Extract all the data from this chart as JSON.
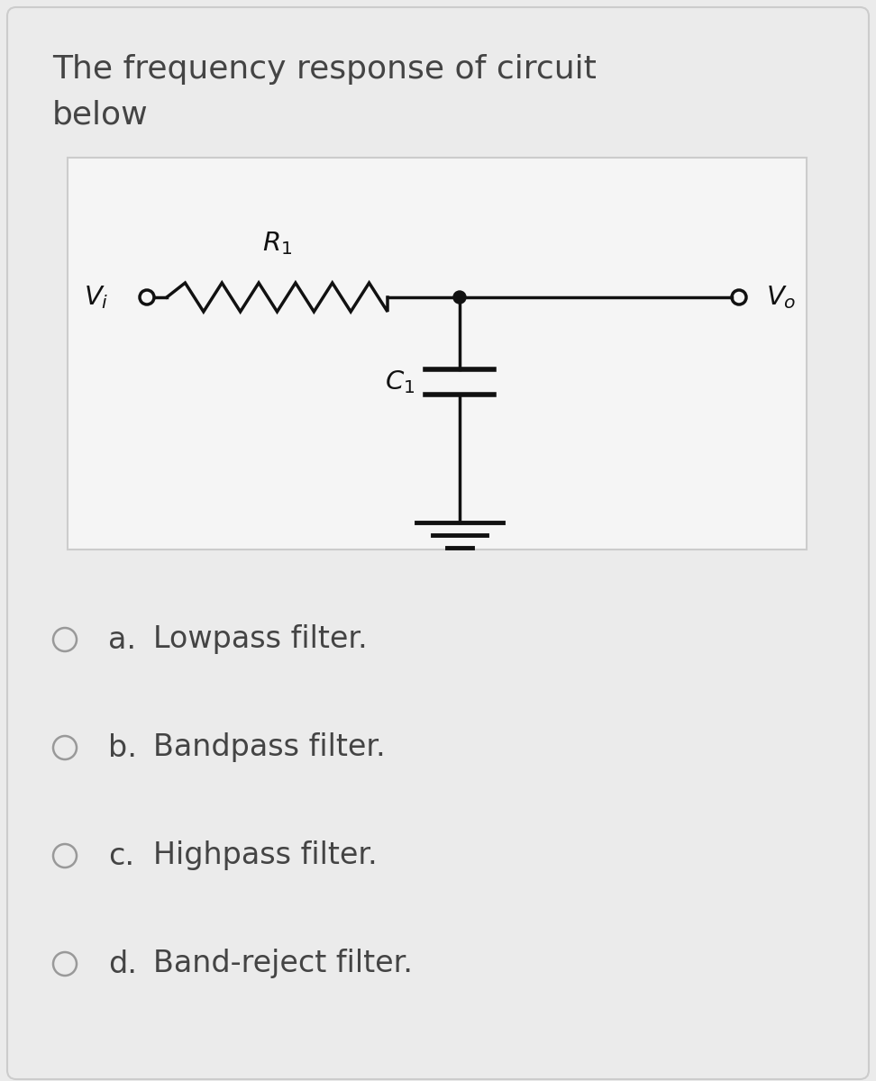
{
  "bg_color": "#ebebeb",
  "card_bg": "#ebebeb",
  "circuit_bg": "#f5f5f5",
  "title_line1": "The frequency response of circuit",
  "title_line2": "below",
  "title_fontsize": 26,
  "title_color": "#444444",
  "options": [
    {
      "label": "a.",
      "text": "Lowpass filter."
    },
    {
      "label": "b.",
      "text": "Bandpass filter."
    },
    {
      "label": "c.",
      "text": "Highpass filter."
    },
    {
      "label": "d.",
      "text": "Band-reject filter."
    }
  ],
  "option_fontsize": 24,
  "option_color": "#444444",
  "circuit_color": "#111111",
  "circuit_border": "#cccccc",
  "radio_color": "#999999",
  "card_edge": "#cccccc"
}
